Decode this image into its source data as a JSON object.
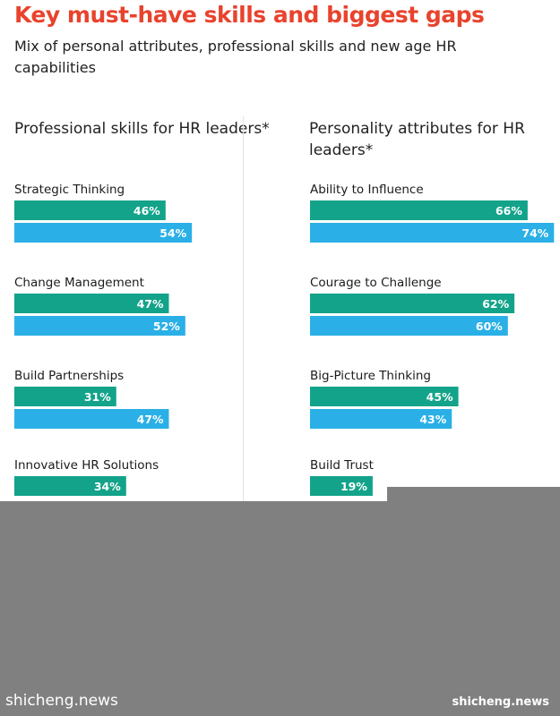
{
  "header": {
    "title": "Key must-have skills and biggest gaps",
    "subtitle": "Mix of personal attributes, professional skills and new age HR capabilities"
  },
  "colors": {
    "title": "#e8432d",
    "series_teal": "#13a38a",
    "series_blue": "#2ab0e6",
    "overlay": "#808080"
  },
  "chart_data": [
    {
      "type": "bar",
      "orientation": "horizontal",
      "title": "Professional skills for HR leaders*",
      "categories": [
        "Strategic Thinking",
        "Change Management",
        "Build Partnerships",
        "Innovative HR Solutions"
      ],
      "series": [
        {
          "values": [
            46,
            47,
            31,
            34
          ]
        },
        {
          "values": [
            54,
            52,
            47,
            null
          ]
        }
      ],
      "unit": "%",
      "xlim": [
        0,
        100
      ]
    },
    {
      "type": "bar",
      "orientation": "horizontal",
      "title": "Personality attributes for HR leaders*",
      "categories": [
        "Ability to Influence",
        "Courage to Challenge",
        "Big-Picture Thinking",
        "Build Trust"
      ],
      "series": [
        {
          "values": [
            66,
            62,
            45,
            19
          ]
        },
        {
          "values": [
            74,
            60,
            43,
            null
          ]
        }
      ],
      "unit": "%",
      "xlim": [
        0,
        100
      ]
    }
  ],
  "watermark": {
    "left": "shicheng.news",
    "right": "shicheng.news"
  }
}
